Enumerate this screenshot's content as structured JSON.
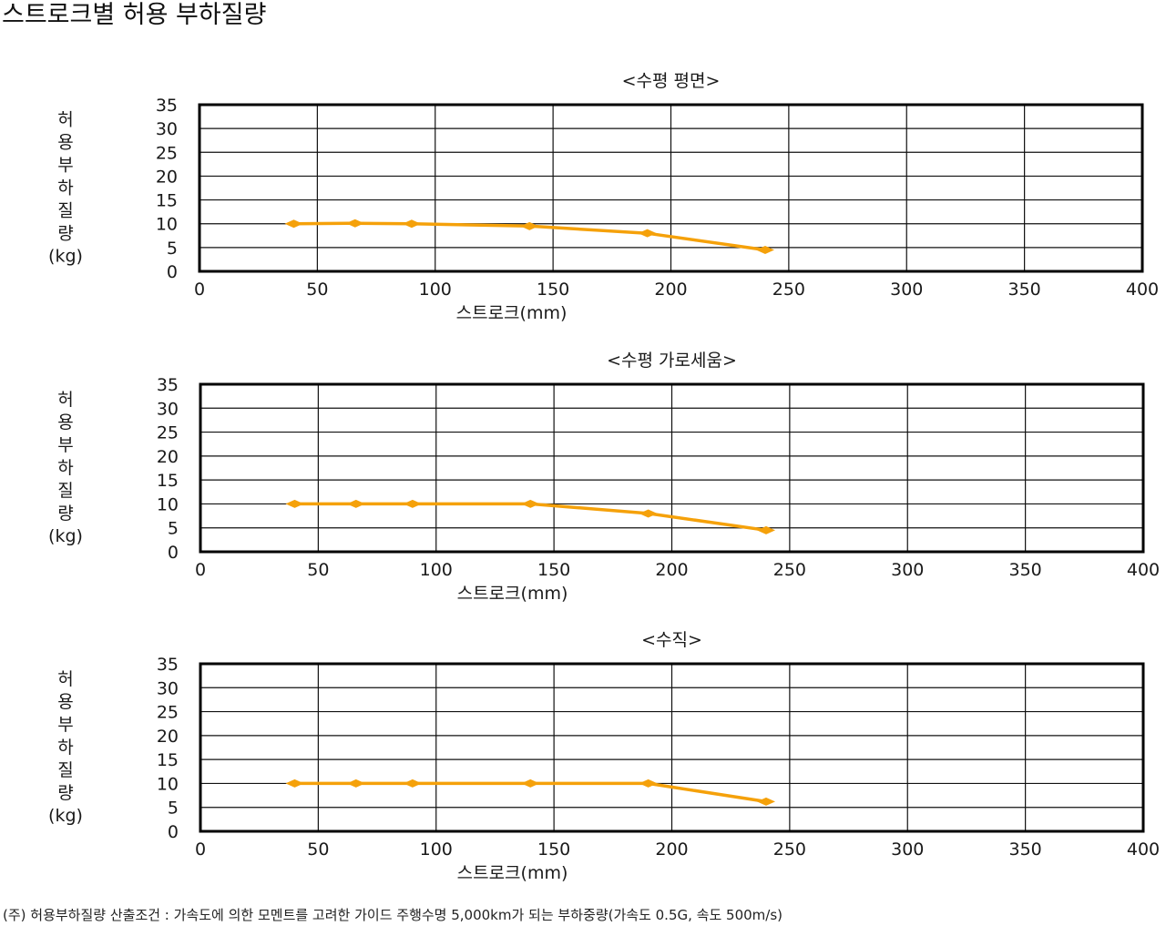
{
  "title": "스트로크별 허용 부하질량",
  "footnote": "(주) 허용부하질량 산출조건 : 가속도에 의한 모멘트를 고려한 가이드 주행수명 5,000km가 되는 부하중량(가속도 0.5G, 속도 500m/s)",
  "colors": {
    "series": "#F5A10A",
    "grid": "#111111",
    "axis": "#000000"
  },
  "chart_data": [
    {
      "type": "line",
      "title": "<수평 평면>",
      "xlabel": "스트로크(mm)",
      "ylabel": "허용부하질량(kg)",
      "ylabel_lines": [
        "허",
        "용",
        "부",
        "하",
        "질",
        "량",
        "(kg)"
      ],
      "xlim": [
        0,
        400
      ],
      "ylim": [
        0,
        35
      ],
      "xticks": [
        0,
        50,
        100,
        150,
        200,
        250,
        300,
        350,
        400
      ],
      "yticks": [
        0,
        5,
        10,
        15,
        20,
        25,
        30,
        35
      ],
      "grid": true,
      "series": [
        {
          "x": [
            40,
            66,
            90,
            140,
            190,
            240
          ],
          "y": [
            10,
            10.1,
            10,
            9.5,
            8,
            4.5
          ]
        }
      ]
    },
    {
      "type": "line",
      "title": "<수평 가로세움>",
      "xlabel": "스트로크(mm)",
      "ylabel": "허용부하질량(kg)",
      "ylabel_lines": [
        "허",
        "용",
        "부",
        "하",
        "질",
        "량",
        "(kg)"
      ],
      "xlim": [
        0,
        400
      ],
      "ylim": [
        0,
        35
      ],
      "xticks": [
        0,
        50,
        100,
        150,
        200,
        250,
        300,
        350,
        400
      ],
      "yticks": [
        0,
        5,
        10,
        15,
        20,
        25,
        30,
        35
      ],
      "grid": true,
      "series": [
        {
          "x": [
            40,
            66,
            90,
            140,
            190,
            240
          ],
          "y": [
            10,
            10,
            10,
            10,
            8,
            4.5
          ]
        }
      ]
    },
    {
      "type": "line",
      "title": "<수직>",
      "xlabel": "스트로크(mm)",
      "ylabel": "허용부하질량(kg)",
      "ylabel_lines": [
        "허",
        "용",
        "부",
        "하",
        "질",
        "량",
        "(kg)"
      ],
      "xlim": [
        0,
        400
      ],
      "ylim": [
        0,
        35
      ],
      "xticks": [
        0,
        50,
        100,
        150,
        200,
        250,
        300,
        350,
        400
      ],
      "yticks": [
        0,
        5,
        10,
        15,
        20,
        25,
        30,
        35
      ],
      "grid": true,
      "series": [
        {
          "x": [
            40,
            66,
            90,
            140,
            190,
            240
          ],
          "y": [
            10,
            10,
            10,
            10,
            10,
            6.2
          ]
        }
      ]
    }
  ]
}
